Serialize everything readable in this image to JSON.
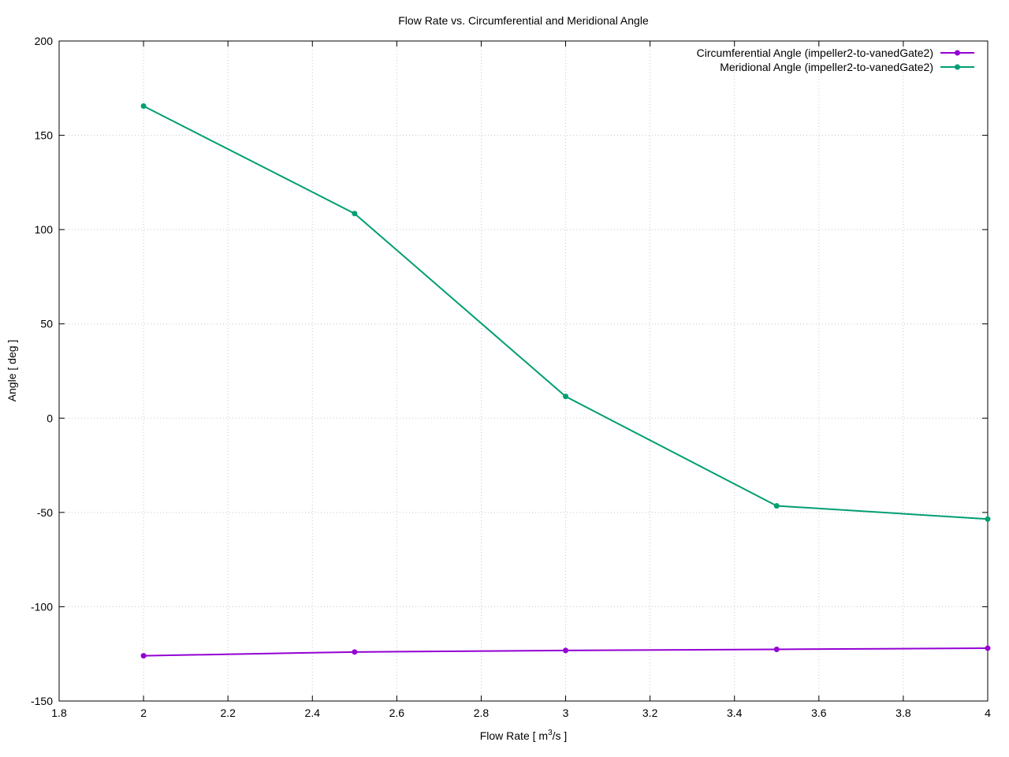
{
  "chart_data": {
    "type": "line",
    "title": "Flow Rate vs. Circumferential and Meridional Angle",
    "xlabel": "Flow Rate [ m",
    "xlabel_sup": "3",
    "xlabel_tail": "/s ]",
    "ylabel": "Angle [ deg ]",
    "xlim": [
      1.8,
      4
    ],
    "ylim": [
      -150,
      200
    ],
    "xticks": [
      "1.8",
      "2",
      "2.2",
      "2.4",
      "2.6",
      "2.8",
      "3",
      "3.2",
      "3.4",
      "3.6",
      "3.8",
      "4"
    ],
    "yticks": [
      "-150",
      "-100",
      "-50",
      "0",
      "50",
      "100",
      "150",
      "200"
    ],
    "grid": true,
    "legend_position": "top-right",
    "x": [
      2,
      2.5,
      3,
      3.5,
      4
    ],
    "series": [
      {
        "name": "Circumferential Angle (impeller2-to-vanedGate2)",
        "color": "#9400d3",
        "values": [
          -126,
          -124,
          -123.2,
          -122.6,
          -122
        ]
      },
      {
        "name": "Meridional Angle (impeller2-to-vanedGate2)",
        "color": "#009e73",
        "values": [
          165.5,
          108.5,
          11.5,
          -46.5,
          -53.5
        ]
      }
    ]
  }
}
